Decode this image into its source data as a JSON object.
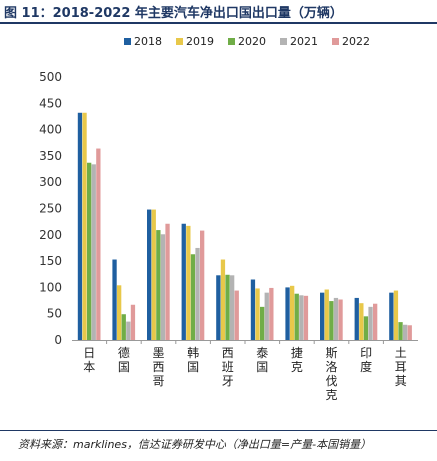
{
  "header": {
    "title": "图 11：2018-2022 年主要汽车净出口国出口量（万辆）"
  },
  "footer": {
    "source": "资料来源：marklines，信达证券研发中心（净出口量=产量-本国销量）"
  },
  "colors": {
    "series": [
      "#1f5fa0",
      "#e8c84a",
      "#70ad47",
      "#b3b3b3",
      "#e09a9a"
    ],
    "axis": "#999999"
  },
  "chart_data": {
    "type": "bar",
    "title": "",
    "xlabel": "",
    "ylabel": "",
    "ylim": [
      0,
      500
    ],
    "yticks": [
      0,
      50,
      100,
      150,
      200,
      250,
      300,
      350,
      400,
      450,
      500
    ],
    "grid": false,
    "legend_position": "top",
    "categories": [
      "日本",
      "德国",
      "墨西哥",
      "韩国",
      "西班牙",
      "泰国",
      "捷克",
      "斯洛伐克",
      "印度",
      "土耳其"
    ],
    "series": [
      {
        "name": "2018",
        "values": [
          432,
          153,
          248,
          221,
          123,
          115,
          100,
          90,
          80,
          90
        ]
      },
      {
        "name": "2019",
        "values": [
          432,
          104,
          248,
          217,
          153,
          98,
          103,
          96,
          70,
          94
        ]
      },
      {
        "name": "2020",
        "values": [
          337,
          49,
          209,
          163,
          124,
          63,
          88,
          74,
          45,
          34
        ]
      },
      {
        "name": "2021",
        "values": [
          334,
          35,
          201,
          175,
          123,
          90,
          85,
          80,
          63,
          29
        ]
      },
      {
        "name": "2022",
        "values": [
          364,
          67,
          221,
          208,
          94,
          99,
          84,
          77,
          69,
          28
        ]
      }
    ]
  }
}
